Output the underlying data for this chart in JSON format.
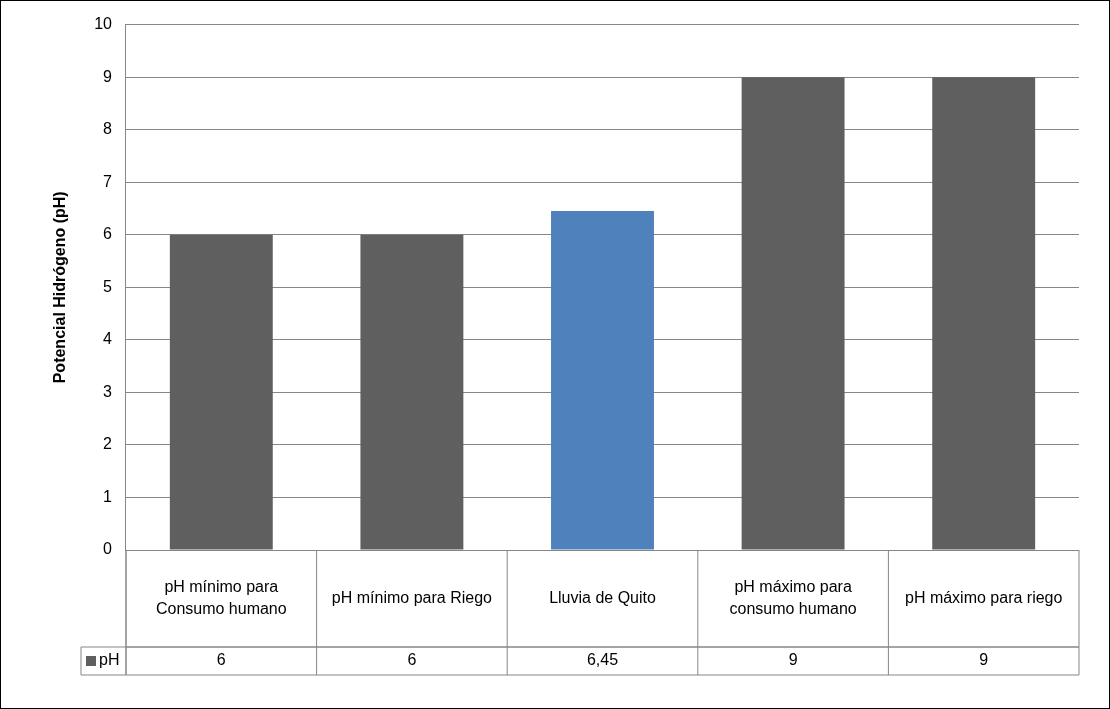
{
  "chart_data": {
    "type": "bar",
    "ylabel": "Potencial Hidrógeno (pH)",
    "categories": [
      "pH mínimo para Consumo humano",
      "pH mínimo para Riego",
      "Lluvia de Quito",
      "pH máximo para consumo humano",
      "pH máximo para riego"
    ],
    "series": [
      {
        "name": "pH",
        "color": "#5f5f5f",
        "colors": [
          "#5f5f5f",
          "#5f5f5f",
          "#4f81bd",
          "#5f5f5f",
          "#5f5f5f"
        ],
        "values": [
          6,
          6,
          6.45,
          9,
          9
        ],
        "value_labels": [
          "6",
          "6",
          "6,45",
          "9",
          "9"
        ]
      }
    ],
    "ylim": [
      0,
      10
    ],
    "yticks": [
      0,
      1,
      2,
      3,
      4,
      5,
      6,
      7,
      8,
      9,
      10
    ],
    "grid": "y",
    "legend": "bottom left"
  }
}
